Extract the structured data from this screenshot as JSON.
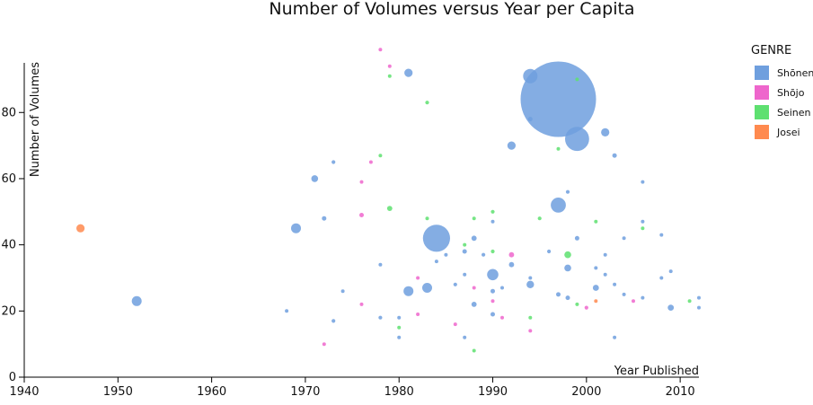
{
  "chart_data": {
    "type": "scatter",
    "title": "Number of Volumes versus Year per Capita",
    "xlabel": "Year Published",
    "ylabel": "Number of Volumes",
    "xlim": [
      1940,
      2012
    ],
    "ylim": [
      0,
      95
    ],
    "xticks": [
      1940,
      1950,
      1960,
      1970,
      1980,
      1990,
      2000,
      2010
    ],
    "yticks": [
      0,
      20,
      40,
      60,
      80
    ],
    "grid": false,
    "legend": {
      "title": "GENRE",
      "placement": "right",
      "entries": [
        {
          "name": "Shōnen",
          "color": "#6f9fde"
        },
        {
          "name": "Shōjo",
          "color": "#ee66cc"
        },
        {
          "name": "Seinen",
          "color": "#5ee070"
        },
        {
          "name": "Josei",
          "color": "#ff8a4f"
        }
      ]
    },
    "series": [
      {
        "name": "Shōnen",
        "color": "#6f9fde",
        "points": [
          {
            "x": 1997,
            "y": 84,
            "size": 100
          },
          {
            "x": 1999,
            "y": 72,
            "size": 32
          },
          {
            "x": 1984,
            "y": 42,
            "size": 36
          },
          {
            "x": 1994,
            "y": 91,
            "size": 19
          },
          {
            "x": 1997,
            "y": 52,
            "size": 20
          },
          {
            "x": 1990,
            "y": 31,
            "size": 15
          },
          {
            "x": 1981,
            "y": 92,
            "size": 11
          },
          {
            "x": 1992,
            "y": 70,
            "size": 11
          },
          {
            "x": 1969,
            "y": 45,
            "size": 13
          },
          {
            "x": 1952,
            "y": 23,
            "size": 13
          },
          {
            "x": 1983,
            "y": 27,
            "size": 13
          },
          {
            "x": 1981,
            "y": 26,
            "size": 13
          },
          {
            "x": 1994,
            "y": 28,
            "size": 10
          },
          {
            "x": 2002,
            "y": 74,
            "size": 11
          },
          {
            "x": 1971,
            "y": 60,
            "size": 9
          },
          {
            "x": 1998,
            "y": 33,
            "size": 9
          },
          {
            "x": 2001,
            "y": 27,
            "size": 8
          },
          {
            "x": 2009,
            "y": 21,
            "size": 8
          },
          {
            "x": 1988,
            "y": 42,
            "size": 7
          },
          {
            "x": 1988,
            "y": 22,
            "size": 7
          },
          {
            "x": 1992,
            "y": 34,
            "size": 7
          },
          {
            "x": 1990,
            "y": 19,
            "size": 6
          },
          {
            "x": 1999,
            "y": 42,
            "size": 6
          },
          {
            "x": 1998,
            "y": 24,
            "size": 6
          },
          {
            "x": 1997,
            "y": 25,
            "size": 6
          },
          {
            "x": 2003,
            "y": 67,
            "size": 6
          },
          {
            "x": 1994,
            "y": 78,
            "size": 6
          },
          {
            "x": 1987,
            "y": 38,
            "size": 6
          },
          {
            "x": 1990,
            "y": 26,
            "size": 6
          },
          {
            "x": 1989,
            "y": 37,
            "size": 5
          },
          {
            "x": 1972,
            "y": 48,
            "size": 6
          },
          {
            "x": 1998,
            "y": 56,
            "size": 5
          },
          {
            "x": 1973,
            "y": 17,
            "size": 5
          },
          {
            "x": 1973,
            "y": 65,
            "size": 5
          },
          {
            "x": 1986,
            "y": 28,
            "size": 5
          },
          {
            "x": 1978,
            "y": 18,
            "size": 5
          },
          {
            "x": 1996,
            "y": 38,
            "size": 5
          },
          {
            "x": 2006,
            "y": 59,
            "size": 4
          },
          {
            "x": 1980,
            "y": 18,
            "size": 4
          },
          {
            "x": 1990,
            "y": 47,
            "size": 3
          },
          {
            "x": 1984,
            "y": 35,
            "size": 4
          },
          {
            "x": 1991,
            "y": 27,
            "size": 4
          },
          {
            "x": 1974,
            "y": 26,
            "size": 4
          },
          {
            "x": 1978,
            "y": 34,
            "size": 4
          },
          {
            "x": 2002,
            "y": 31,
            "size": 4
          },
          {
            "x": 2004,
            "y": 42,
            "size": 3
          },
          {
            "x": 2003,
            "y": 12,
            "size": 4
          },
          {
            "x": 2001,
            "y": 33,
            "size": 3
          },
          {
            "x": 2008,
            "y": 30,
            "size": 4
          },
          {
            "x": 1980,
            "y": 12,
            "size": 3
          },
          {
            "x": 1987,
            "y": 31,
            "size": 3
          },
          {
            "x": 1985,
            "y": 37,
            "size": 4
          },
          {
            "x": 2012,
            "y": 24,
            "size": 3
          },
          {
            "x": 2012,
            "y": 21,
            "size": 3
          },
          {
            "x": 2006,
            "y": 24,
            "size": 3
          },
          {
            "x": 2003,
            "y": 28,
            "size": 3
          },
          {
            "x": 1968,
            "y": 20,
            "size": 3
          },
          {
            "x": 1987,
            "y": 12,
            "size": 3
          },
          {
            "x": 1994,
            "y": 30,
            "size": 3
          },
          {
            "x": 2009,
            "y": 32,
            "size": 3
          },
          {
            "x": 2008,
            "y": 43,
            "size": 3
          },
          {
            "x": 2002,
            "y": 37,
            "size": 3
          },
          {
            "x": 2004,
            "y": 25,
            "size": 3
          },
          {
            "x": 2006,
            "y": 47,
            "size": 3
          }
        ]
      },
      {
        "name": "Shōjo",
        "color": "#ee66cc",
        "points": [
          {
            "x": 1992,
            "y": 37,
            "size": 7
          },
          {
            "x": 1976,
            "y": 49,
            "size": 6
          },
          {
            "x": 2000,
            "y": 21,
            "size": 5
          },
          {
            "x": 1976,
            "y": 59,
            "size": 4
          },
          {
            "x": 1991,
            "y": 18,
            "size": 4
          },
          {
            "x": 1986,
            "y": 16,
            "size": 4
          },
          {
            "x": 1978,
            "y": 99,
            "size": 3
          },
          {
            "x": 1979,
            "y": 94,
            "size": 3
          },
          {
            "x": 1977,
            "y": 65,
            "size": 3
          },
          {
            "x": 1982,
            "y": 30,
            "size": 3
          },
          {
            "x": 1988,
            "y": 27,
            "size": 3
          },
          {
            "x": 1982,
            "y": 19,
            "size": 3
          },
          {
            "x": 1990,
            "y": 23,
            "size": 3
          },
          {
            "x": 1994,
            "y": 14,
            "size": 3
          },
          {
            "x": 1976,
            "y": 22,
            "size": 2
          },
          {
            "x": 1972,
            "y": 10,
            "size": 2
          },
          {
            "x": 2005,
            "y": 23,
            "size": 2
          }
        ]
      },
      {
        "name": "Seinen",
        "color": "#5ee070",
        "points": [
          {
            "x": 1998,
            "y": 37,
            "size": 9
          },
          {
            "x": 1979,
            "y": 51,
            "size": 7
          },
          {
            "x": 1995,
            "y": 48,
            "size": 5
          },
          {
            "x": 1983,
            "y": 83,
            "size": 5
          },
          {
            "x": 1990,
            "y": 50,
            "size": 5
          },
          {
            "x": 1990,
            "y": 38,
            "size": 5
          },
          {
            "x": 1999,
            "y": 22,
            "size": 4
          },
          {
            "x": 1978,
            "y": 67,
            "size": 4
          },
          {
            "x": 1987,
            "y": 40,
            "size": 4
          },
          {
            "x": 1983,
            "y": 48,
            "size": 4
          },
          {
            "x": 1979,
            "y": 91,
            "size": 3
          },
          {
            "x": 1999,
            "y": 90,
            "size": 3
          },
          {
            "x": 2001,
            "y": 47,
            "size": 3
          },
          {
            "x": 2006,
            "y": 45,
            "size": 3
          },
          {
            "x": 1980,
            "y": 15,
            "size": 3
          },
          {
            "x": 1988,
            "y": 8,
            "size": 3
          },
          {
            "x": 1988,
            "y": 48,
            "size": 2
          },
          {
            "x": 1994,
            "y": 18,
            "size": 2
          },
          {
            "x": 2011,
            "y": 23,
            "size": 2
          },
          {
            "x": 1997,
            "y": 69,
            "size": 3
          }
        ]
      },
      {
        "name": "Josei",
        "color": "#ff8a4f",
        "points": [
          {
            "x": 1946,
            "y": 45,
            "size": 11
          },
          {
            "x": 2001,
            "y": 23,
            "size": 4
          }
        ]
      }
    ]
  }
}
